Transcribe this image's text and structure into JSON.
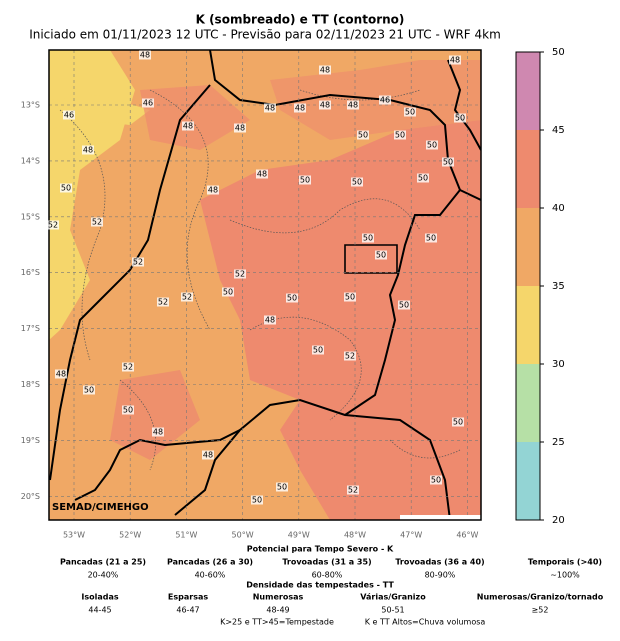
{
  "title": "K (sombreado) e TT (contorno)",
  "subtitle": "Iniciado em 01/11/2023 12 UTC - Previsão para 02/11/2023 21 UTC - WRF 4km",
  "map": {
    "lat_labels": [
      "13°S",
      "14°S",
      "15°S",
      "16°S",
      "17°S",
      "18°S",
      "19°S",
      "20°S"
    ],
    "lon_labels": [
      "53°W",
      "52°W",
      "51°W",
      "50°W",
      "49°W",
      "48°W",
      "47°W",
      "46°W"
    ],
    "credit": "SEMAD/CIMEHGO",
    "contour_labels": [
      48,
      48,
      46,
      46,
      48,
      48,
      48,
      48,
      48,
      48,
      46,
      48,
      48,
      50,
      50,
      50,
      50,
      50,
      48,
      48,
      50,
      50,
      50,
      50,
      50,
      52,
      52,
      52,
      52,
      50,
      50,
      50,
      50,
      52,
      52,
      50,
      50,
      50,
      48,
      50,
      52,
      52,
      50,
      48,
      50,
      48,
      48,
      50,
      50,
      52,
      50,
      50
    ]
  },
  "colorbar": {
    "ticks": [
      20,
      25,
      30,
      35,
      40,
      45,
      50
    ],
    "colors": [
      "#93d4d4",
      "#b6e0a6",
      "#f5d66b",
      "#f0a865",
      "#ee8a6e",
      "#cf88b0"
    ]
  },
  "legend": {
    "k_header": "Potencial para Tempo Severo - K",
    "k_items": [
      [
        "Pancadas (21 a 25)",
        "20-40%"
      ],
      [
        "Pancadas (26 a 30)",
        "40-60%"
      ],
      [
        "Trovoadas (31 a 35)",
        "60-80%"
      ],
      [
        "Trovoadas (36 a 40)",
        "80-90%"
      ],
      [
        "Temporais (>40)",
        "~100%"
      ]
    ],
    "tt_header": "Densidade das tempestades - TT",
    "tt_items": [
      [
        "Isoladas",
        "44-45"
      ],
      [
        "Esparsas",
        "46-47"
      ],
      [
        "Numerosas",
        "48-49"
      ],
      [
        "Várias/Granizo",
        "50-51"
      ],
      [
        "Numerosas/Granizo/tornado",
        "≥52"
      ]
    ],
    "notes": [
      "K>25 e TT>45=Tempestade",
      "K e TT Altos=Chuva volumosa"
    ]
  }
}
